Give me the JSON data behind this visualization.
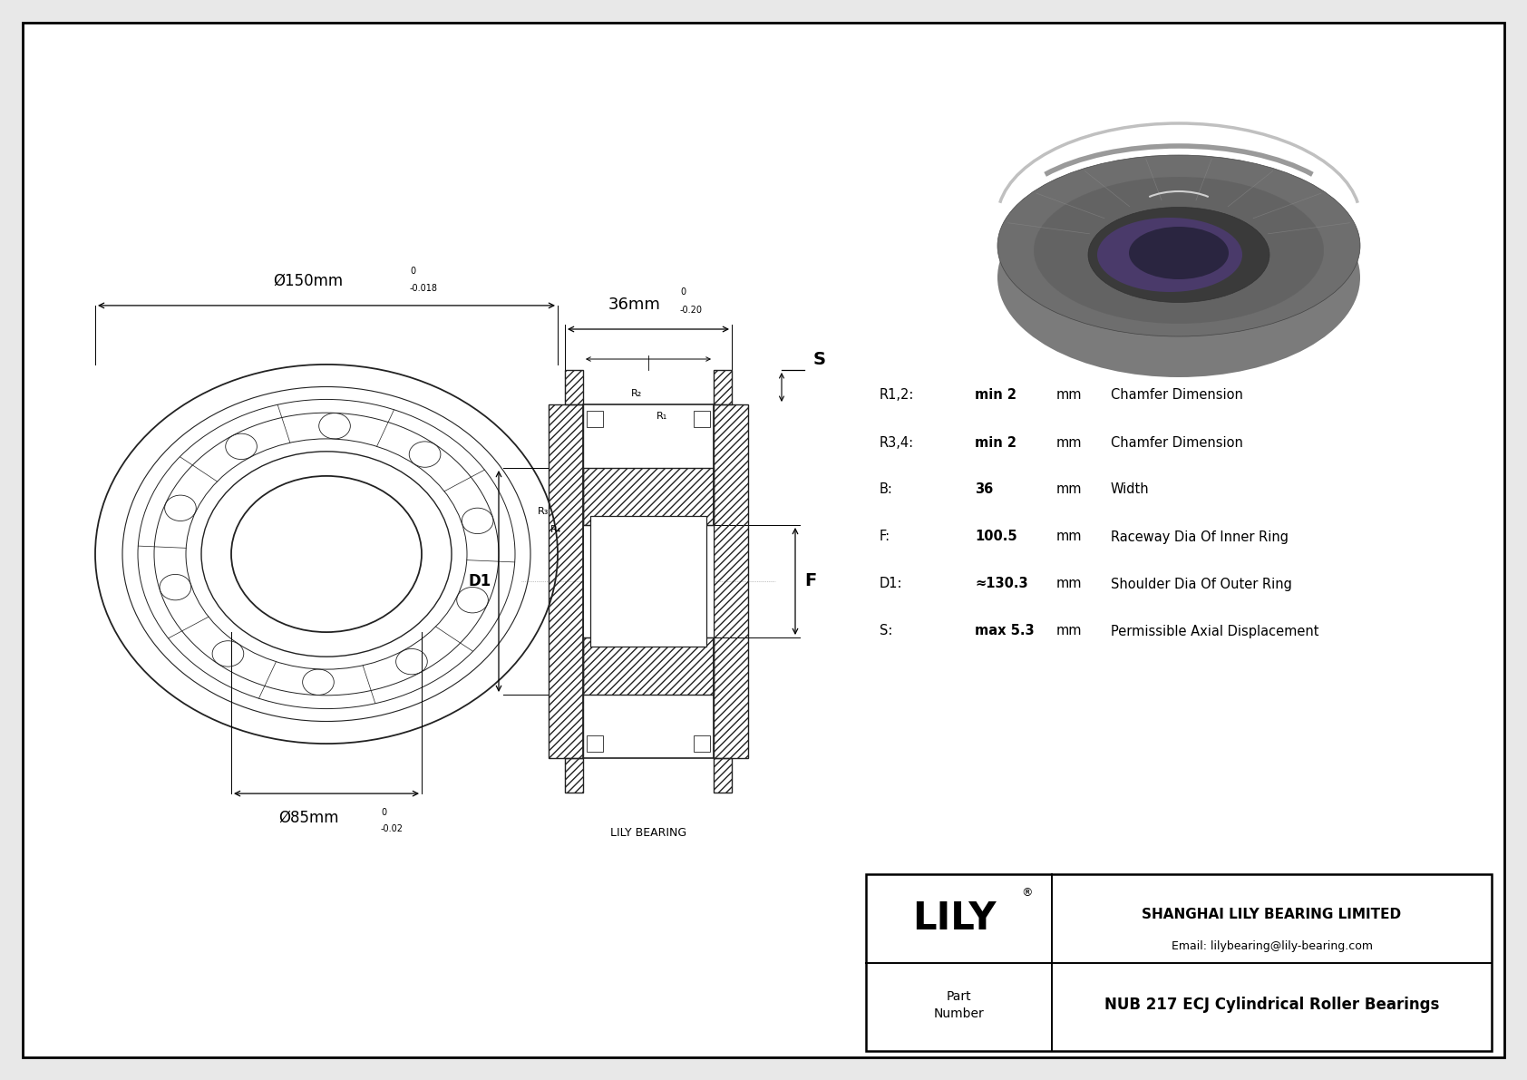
{
  "bg_color": "#e8e8e8",
  "drawing_bg": "#ffffff",
  "border_color": "#000000",
  "line_color": "#222222",
  "title": "NUB 217 ECJ Cylindrical Roller Bearings",
  "company": "SHANGHAI LILY BEARING LIMITED",
  "email": "Email: lilybearing@lily-bearing.com",
  "brand": "LILY",
  "part_label": "Part\nNumber",
  "lily_bearing_label": "LILY BEARING",
  "dim_150": "Ø150mm",
  "dim_150_tol_top": "0",
  "dim_150_tol_bot": "-0.018",
  "dim_85": "Ø85mm",
  "dim_85_tol_top": "0",
  "dim_85_tol_bot": "-0.02",
  "dim_36": "36mm",
  "dim_36_tol_top": "0",
  "dim_36_tol_bot": "-0.20",
  "params": [
    {
      "sym": "R1,2:",
      "val": "min 2",
      "unit": "mm",
      "desc": "Chamfer Dimension"
    },
    {
      "sym": "R3,4:",
      "val": "min 2",
      "unit": "mm",
      "desc": "Chamfer Dimension"
    },
    {
      "sym": "B:",
      "val": "36",
      "unit": "mm",
      "desc": "Width"
    },
    {
      "sym": "F:",
      "val": "100.5",
      "unit": "mm",
      "desc": "Raceway Dia Of Inner Ring"
    },
    {
      "sym": "D1:",
      "val": "≈130.3",
      "unit": "mm",
      "desc": "Shoulder Dia Of Outer Ring"
    },
    {
      "sym": "S:",
      "val": "max 5.3",
      "unit": "mm",
      "desc": "Permissible Axial Displacement"
    }
  ]
}
